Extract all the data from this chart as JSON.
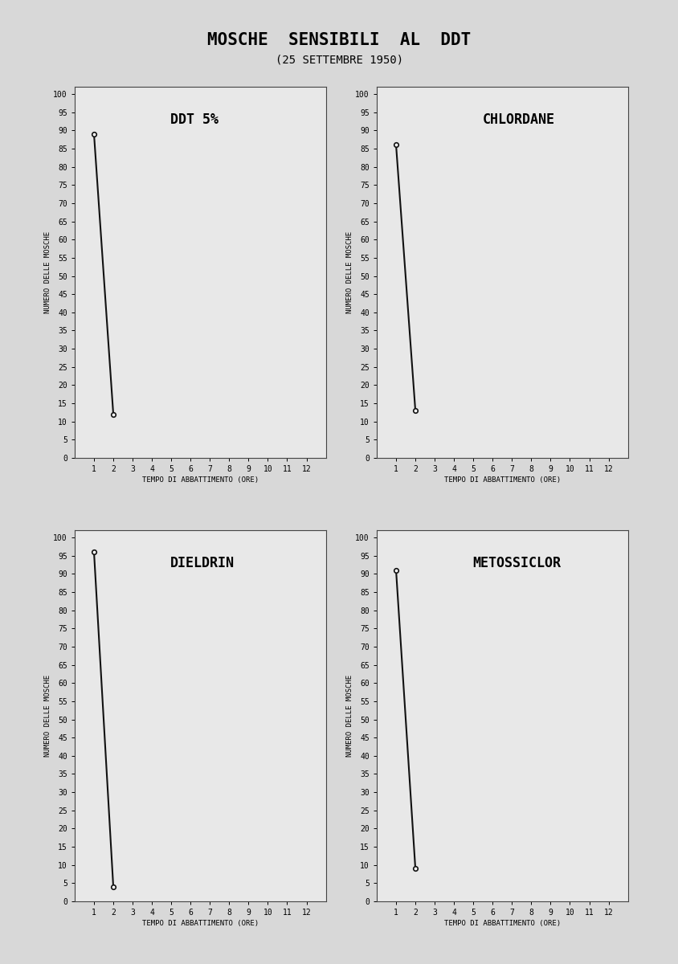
{
  "title": "MOSCHE  SENSIBILI  AL  DDT",
  "subtitle": "(25 SETTEMBRE 1950)",
  "subplots": [
    {
      "label": "DDT 5%",
      "x": [
        1,
        2
      ],
      "y": [
        89,
        12
      ]
    },
    {
      "label": "CHLORDANE",
      "x": [
        1,
        2
      ],
      "y": [
        86,
        13
      ]
    },
    {
      "label": "DIELDRIN",
      "x": [
        1,
        2
      ],
      "y": [
        96,
        4
      ]
    },
    {
      "label": "METOSSICLOR",
      "x": [
        1,
        2
      ],
      "y": [
        91,
        9
      ]
    }
  ],
  "ylabel": "NUMERO DELLE MOSCHE",
  "xlabel": "TEMPO DI ABBATTIMENTO (ORE)",
  "yticks": [
    0,
    5,
    10,
    15,
    20,
    25,
    30,
    35,
    40,
    45,
    50,
    55,
    60,
    65,
    70,
    75,
    80,
    85,
    90,
    95,
    100
  ],
  "xticks": [
    1,
    2,
    3,
    4,
    5,
    6,
    7,
    8,
    9,
    10,
    11,
    12
  ],
  "ylim": [
    0,
    102
  ],
  "xlim": [
    0,
    13
  ],
  "bg_color": "#d8d8d8",
  "plot_bg_color": "#e8e8e8",
  "line_color": "#111111",
  "marker_size": 4,
  "line_width": 1.5,
  "title_fontsize": 15,
  "subtitle_fontsize": 10,
  "tick_fontsize": 7,
  "ylabel_fontsize": 6.5,
  "xlabel_fontsize": 6.5,
  "subplot_label_fontsize": 12
}
